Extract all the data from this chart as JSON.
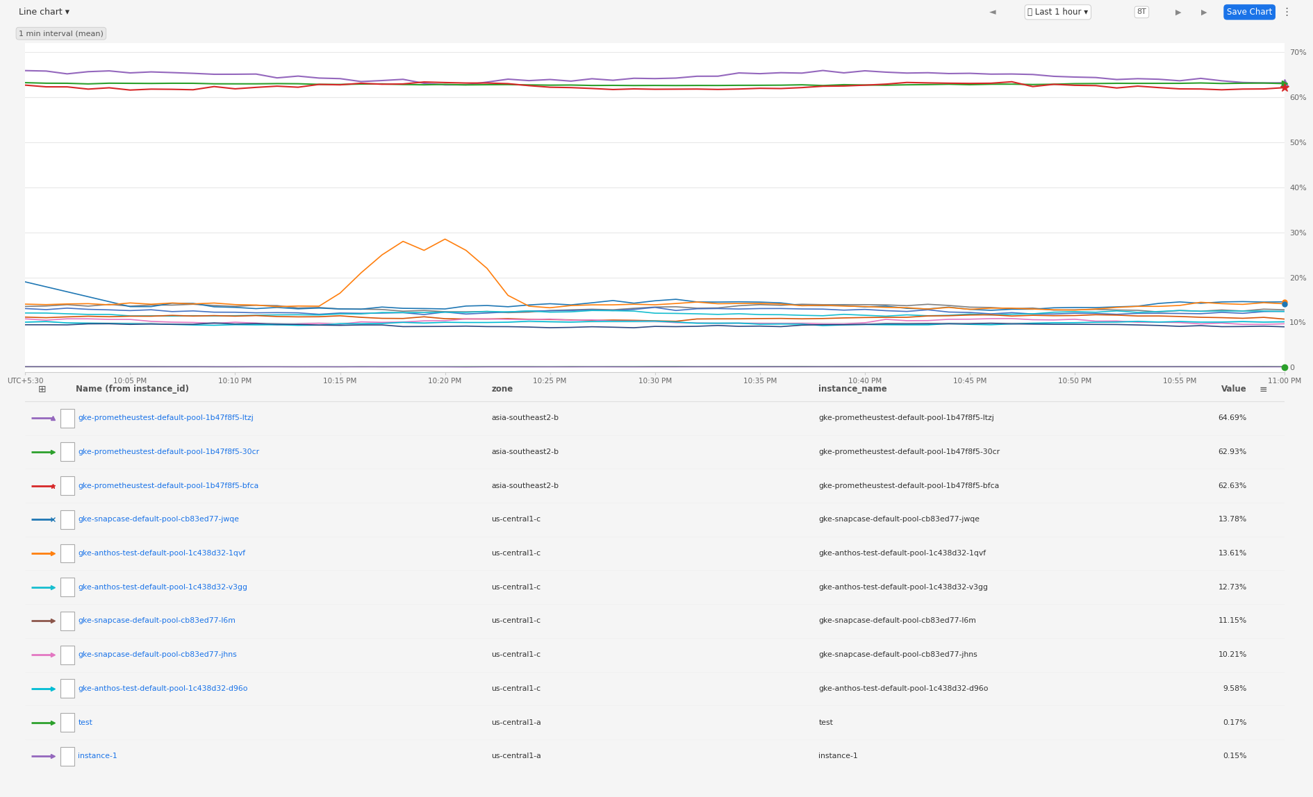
{
  "toolbar_label": "Line chart",
  "interval_label": "1 min interval (mean)",
  "x_tick_labels": [
    "UTC+5:30",
    "10:05 PM",
    "10:10 PM",
    "10:15 PM",
    "10:20 PM",
    "10:25 PM",
    "10:30 PM",
    "10:35 PM",
    "10:40 PM",
    "10:45 PM",
    "10:50 PM",
    "10:55 PM",
    "11:00 PM"
  ],
  "x_tick_positions": [
    0,
    5,
    10,
    15,
    20,
    25,
    30,
    35,
    40,
    45,
    50,
    55,
    60
  ],
  "y_ticks": [
    0,
    10,
    20,
    30,
    40,
    50,
    60,
    70
  ],
  "y_tick_labels": [
    "0",
    "10%",
    "20%",
    "30%",
    "40%",
    "50%",
    "60%",
    "70%"
  ],
  "grid_color": "#e8e8e8",
  "table_headers": [
    "Name (from instance_id)",
    "zone",
    "instance_name",
    "Value"
  ],
  "table_rows": [
    [
      "gke-prometheustest-default-pool-1b47f8f5-ltzj",
      "asia-southeast2-b",
      "gke-prometheustest-default-pool-1b47f8f5-ltzj",
      "64.69%"
    ],
    [
      "gke-prometheustest-default-pool-1b47f8f5-30cr",
      "asia-southeast2-b",
      "gke-prometheustest-default-pool-1b47f8f5-30cr",
      "62.93%"
    ],
    [
      "gke-prometheustest-default-pool-1b47f8f5-bfca",
      "asia-southeast2-b",
      "gke-prometheustest-default-pool-1b47f8f5-bfca",
      "62.63%"
    ],
    [
      "gke-snapcase-default-pool-cb83ed77-jwqe",
      "us-central1-c",
      "gke-snapcase-default-pool-cb83ed77-jwqe",
      "13.78%"
    ],
    [
      "gke-anthos-test-default-pool-1c438d32-1qvf",
      "us-central1-c",
      "gke-anthos-test-default-pool-1c438d32-1qvf",
      "13.61%"
    ],
    [
      "gke-anthos-test-default-pool-1c438d32-v3gg",
      "us-central1-c",
      "gke-anthos-test-default-pool-1c438d32-v3gg",
      "12.73%"
    ],
    [
      "gke-snapcase-default-pool-cb83ed77-l6m",
      "us-central1-c",
      "gke-snapcase-default-pool-cb83ed77-l6m",
      "11.15%"
    ],
    [
      "gke-snapcase-default-pool-cb83ed77-jhns",
      "us-central1-c",
      "gke-snapcase-default-pool-cb83ed77-jhns",
      "10.21%"
    ],
    [
      "gke-anthos-test-default-pool-1c438d32-d96o",
      "us-central1-c",
      "gke-anthos-test-default-pool-1c438d32-d96o",
      "9.58%"
    ],
    [
      "test",
      "us-central1-a",
      "test",
      "0.17%"
    ],
    [
      "instance-1",
      "us-central1-a",
      "instance-1",
      "0.15%"
    ]
  ],
  "row_colors": [
    "#9467bd",
    "#2ca02c",
    "#d62728",
    "#1f77b4",
    "#ff7f0e",
    "#17becf",
    "#8c564b",
    "#e377c2",
    "#00bcd4",
    "#2ca02c",
    "#9467bd"
  ],
  "row_markers": [
    "^",
    ">",
    "*",
    "x",
    ">",
    ">",
    ">",
    ">",
    ">",
    ">",
    ">"
  ]
}
